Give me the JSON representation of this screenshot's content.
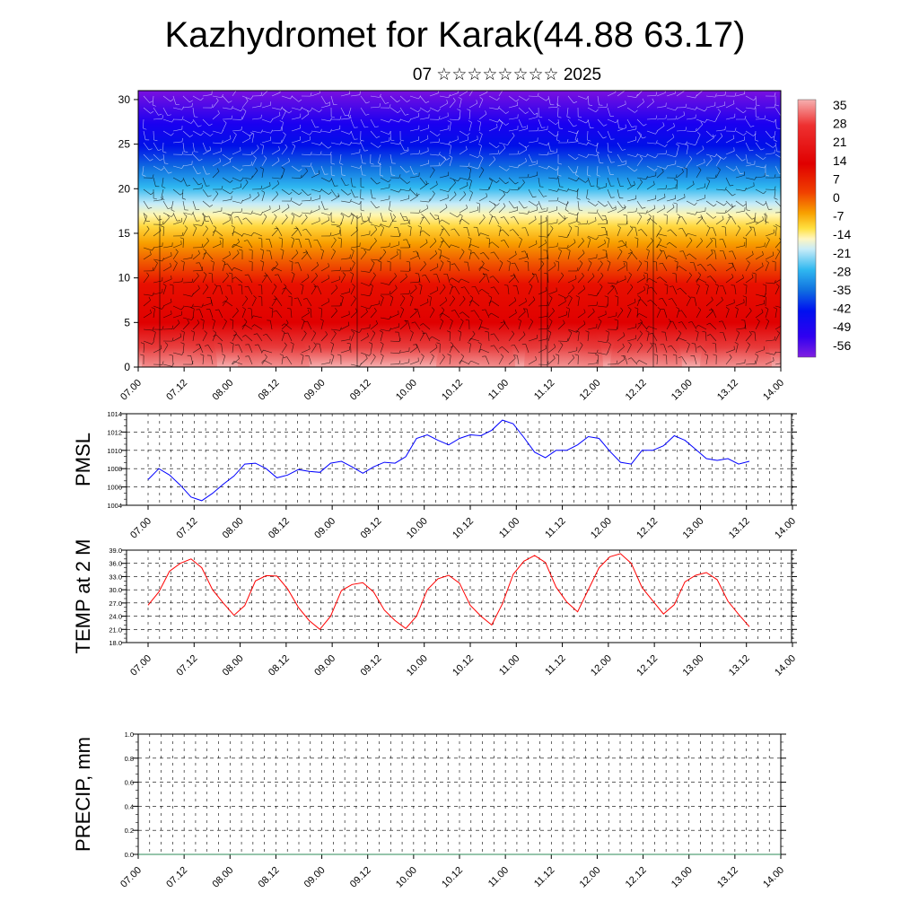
{
  "title": "Kazhydromet for Karak(44.88 63.17)",
  "subtitle": "07 ☆☆☆☆☆☆☆☆ 2025",
  "colors": {
    "pmsl_line": "#0000ff",
    "temp_line": "#ff0000",
    "precip_line": "#2e8b57",
    "colorbar": [
      "#f8c0c0",
      "#f07070",
      "#e82020",
      "#e00000",
      "#f04000",
      "#f8a000",
      "#ffe040",
      "#fff8c0",
      "#c8ecf8",
      "#30b8f0",
      "#1070e0",
      "#0010f0",
      "#4000f0",
      "#8000e0"
    ]
  },
  "chart_data": [
    {
      "type": "heatmap",
      "name": "cross-section",
      "yticks": [
        "0",
        "5",
        "10",
        "15",
        "20",
        "25",
        "30"
      ],
      "ylim": [
        0,
        31
      ],
      "xticks": [
        "07.00",
        "07.12",
        "08.00",
        "08.12",
        "09.00",
        "09.12",
        "10.00",
        "10.12",
        "11.00",
        "11.12",
        "12.00",
        "12.12",
        "13.00",
        "13.12",
        "14.00"
      ],
      "colorbar_labels": [
        "35",
        "28",
        "21",
        "14",
        "7",
        "0",
        "-7",
        "-14",
        "-21",
        "-28",
        "-35",
        "-42",
        "-49",
        "-56"
      ],
      "wind_field": "barbs"
    },
    {
      "type": "line",
      "ylabel": "PMSL",
      "ylim": [
        1004,
        1014
      ],
      "yticks": [
        "1004",
        "1006",
        "1008",
        "1010",
        "1012",
        "1014"
      ],
      "xticks": [
        "07.00",
        "07.12",
        "08.00",
        "08.12",
        "09.00",
        "09.12",
        "10.00",
        "10.12",
        "11.00",
        "11.12",
        "12.00",
        "12.12",
        "13.00",
        "13.12",
        "14.00"
      ],
      "series": [
        {
          "values": [
            1006.8,
            1008.0,
            1007.3,
            1006.2,
            1004.9,
            1004.5,
            1005.3,
            1006.3,
            1007.2,
            1008.5,
            1008.6,
            1008.0,
            1007.0,
            1007.3,
            1007.9,
            1007.7,
            1007.6,
            1008.6,
            1008.8,
            1008.2,
            1007.5,
            1008.2,
            1008.7,
            1008.6,
            1009.3,
            1011.3,
            1011.7,
            1011.1,
            1010.6,
            1011.3,
            1011.7,
            1011.6,
            1012.2,
            1013.3,
            1012.9,
            1011.4,
            1009.8,
            1009.2,
            1010.0,
            1010.0,
            1010.6,
            1011.5,
            1011.3,
            1009.9,
            1008.7,
            1008.5,
            1010.0,
            1010.0,
            1010.5,
            1011.6,
            1011.1,
            1010.1,
            1009.1,
            1008.9,
            1009.1,
            1008.5,
            1008.8
          ]
        }
      ]
    },
    {
      "type": "line",
      "ylabel": "TEMP at 2 M",
      "ylim": [
        18,
        39
      ],
      "yticks": [
        "18.0",
        "21.0",
        "24.0",
        "27.0",
        "30.0",
        "33.0",
        "36.0",
        "39.0"
      ],
      "xticks": [
        "07.00",
        "07.12",
        "08.00",
        "08.12",
        "09.00",
        "09.12",
        "10.00",
        "10.12",
        "11.00",
        "11.12",
        "12.00",
        "12.12",
        "13.00",
        "13.12",
        "14.00"
      ],
      "series": [
        {
          "values": [
            26.5,
            29.5,
            34.2,
            36.0,
            37.0,
            35.0,
            30.0,
            27.0,
            24.2,
            26.4,
            32.0,
            33.2,
            33.1,
            30.2,
            26.0,
            23.0,
            21.0,
            24.0,
            29.8,
            31.2,
            31.6,
            29.5,
            25.4,
            23.0,
            21.2,
            24.0,
            30.0,
            32.5,
            33.3,
            31.5,
            26.5,
            24.0,
            22.0,
            26.8,
            33.5,
            36.5,
            37.8,
            36.2,
            30.6,
            27.2,
            25.0,
            30.0,
            35.0,
            37.5,
            38.2,
            36.0,
            30.5,
            27.5,
            24.5,
            26.6,
            31.8,
            33.3,
            33.9,
            32.3,
            27.4,
            24.4,
            21.6
          ]
        }
      ]
    },
    {
      "type": "line",
      "ylabel": "PRECIP, mm",
      "ylim": [
        0,
        1
      ],
      "yticks": [
        "0.0",
        "0.2",
        "0.4",
        "0.6",
        "0.8",
        "1.0"
      ],
      "xticks": [
        "07.00",
        "07.12",
        "08.00",
        "08.12",
        "09.00",
        "09.12",
        "10.00",
        "10.12",
        "11.00",
        "11.12",
        "12.00",
        "12.12",
        "13.00",
        "13.12",
        "14.00"
      ],
      "series": [
        {
          "values": [
            0,
            0,
            0,
            0,
            0,
            0,
            0,
            0,
            0,
            0,
            0,
            0,
            0,
            0,
            0,
            0,
            0,
            0,
            0,
            0,
            0,
            0,
            0,
            0,
            0,
            0,
            0,
            0,
            0,
            0,
            0,
            0,
            0,
            0,
            0,
            0,
            0,
            0,
            0,
            0,
            0,
            0,
            0,
            0,
            0,
            0,
            0,
            0,
            0,
            0,
            0,
            0,
            0,
            0,
            0,
            0,
            0
          ]
        }
      ]
    }
  ]
}
